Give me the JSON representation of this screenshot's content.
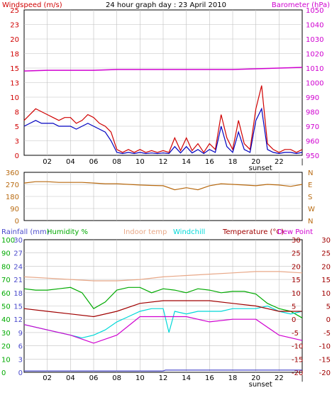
{
  "colors": {
    "windspeed": "#d00000",
    "windspeed_avg": "#0000c0",
    "barometer": "#d000d0",
    "wind_direction": "#b86a10",
    "rainfall": "#4a4acc",
    "humidity": "#00aa00",
    "indoor_temp": "#e8a888",
    "windchill": "#00d8d8",
    "temperature": "#a00000",
    "dew_point": "#d000d0",
    "grid": "#c0c0c0",
    "frame": "#000000"
  },
  "chart_data": [
    {
      "type": "line",
      "title": "24 hour graph day : 23 April 2010",
      "legend": [
        "Windspeed (m/s)",
        "Barometer (hPa)"
      ],
      "x_ticks": [
        "02",
        "04",
        "06",
        "08",
        "10",
        "12",
        "14",
        "16",
        "18",
        "20",
        "22",
        "|"
      ],
      "sunset_label": "sunset",
      "left_axis": {
        "label": "Windspeed (m/s)",
        "ticks": [
          "0",
          "3",
          "5",
          "8",
          "10",
          "13",
          "15",
          "18",
          "20",
          "23",
          "25"
        ],
        "range": [
          0,
          25
        ]
      },
      "right_axis": {
        "label": "Barometer (hPa)",
        "ticks": [
          "950",
          "960",
          "970",
          "980",
          "990",
          "1000",
          "1010",
          "1020",
          "1030",
          "1040",
          "1050"
        ],
        "range": [
          950,
          1050
        ]
      },
      "series": [
        {
          "name": "Windspeed (m/s)",
          "hours": [
            0,
            0.5,
            1,
            1.5,
            2,
            2.5,
            3,
            3.5,
            4,
            4.5,
            5,
            5.5,
            6,
            6.5,
            7,
            7.5,
            8,
            8.5,
            9,
            9.5,
            10,
            10.5,
            11,
            11.5,
            12,
            12.5,
            13,
            13.5,
            14,
            14.5,
            15,
            15.5,
            16,
            16.5,
            17,
            17.5,
            18,
            18.5,
            19,
            19.5,
            20,
            20.5,
            21,
            21.5,
            22,
            22.5,
            23,
            23.5,
            24
          ],
          "values": [
            6,
            7,
            8,
            7.5,
            7,
            6.5,
            6,
            6.5,
            6.5,
            5.5,
            6,
            7,
            6.5,
            5.5,
            5,
            4,
            1,
            0.5,
            1,
            0.5,
            1,
            0.5,
            0.8,
            0.5,
            0.8,
            0.5,
            3,
            0.8,
            3,
            0.8,
            2,
            0.5,
            2,
            1,
            7,
            3,
            1,
            6,
            2,
            1,
            8,
            12,
            2,
            1,
            0.5,
            1,
            1,
            0.5,
            1
          ]
        },
        {
          "name": "Average windspeed",
          "hours": [
            0,
            0.5,
            1,
            1.5,
            2,
            2.5,
            3,
            3.5,
            4,
            4.5,
            5,
            5.5,
            6,
            6.5,
            7,
            7.5,
            8,
            8.5,
            9,
            9.5,
            10,
            10.5,
            11,
            11.5,
            12,
            12.5,
            13,
            13.5,
            14,
            14.5,
            15,
            15.5,
            16,
            16.5,
            17,
            17.5,
            18,
            18.5,
            19,
            19.5,
            20,
            20.5,
            21,
            21.5,
            22,
            22.5,
            23,
            23.5,
            24
          ],
          "values": [
            5,
            5.5,
            6,
            5.5,
            5.5,
            5.5,
            5,
            5,
            5,
            4.5,
            5,
            5.5,
            5,
            4.5,
            4,
            2.5,
            0.5,
            0.3,
            0.5,
            0.3,
            0.5,
            0.3,
            0.4,
            0.3,
            0.4,
            0.3,
            1.5,
            0.4,
            1.5,
            0.4,
            1,
            0.3,
            1,
            0.5,
            5,
            1.5,
            0.5,
            4,
            1,
            0.5,
            6,
            8,
            1,
            0.5,
            0.3,
            0.5,
            0.5,
            0.3,
            0.5
          ]
        },
        {
          "name": "Barometer (hPa)",
          "axis": "right",
          "hours": [
            0,
            2,
            4,
            6,
            8,
            10,
            12,
            14,
            16,
            18,
            20,
            22,
            24
          ],
          "values": [
            1008,
            1008.5,
            1008.5,
            1008.5,
            1009,
            1009,
            1009,
            1009,
            1009,
            1009,
            1009.5,
            1010,
            1010.5
          ]
        }
      ]
    },
    {
      "type": "line",
      "title": "",
      "legend": [],
      "left_axis": {
        "label": "",
        "ticks": [
          "0",
          "90",
          "180",
          "270",
          "360"
        ],
        "range": [
          0,
          360
        ]
      },
      "right_axis": {
        "label": "",
        "ticks": [
          "N",
          "W",
          "S",
          "E",
          "N"
        ]
      },
      "series": [
        {
          "name": "Wind direction",
          "hours": [
            0,
            1,
            2,
            3,
            4,
            5,
            6,
            7,
            8,
            9,
            10,
            11,
            12,
            13,
            14,
            15,
            16,
            17,
            18,
            19,
            20,
            21,
            22,
            23,
            24
          ],
          "values": [
            280,
            290,
            290,
            285,
            285,
            285,
            280,
            275,
            275,
            270,
            265,
            262,
            260,
            230,
            245,
            230,
            260,
            275,
            270,
            265,
            260,
            270,
            265,
            255,
            270
          ]
        }
      ]
    },
    {
      "type": "line",
      "title": "",
      "legend": [
        "Rainfall (mm)",
        "Humidity %",
        "Indoor temp",
        "Windchill",
        "Temperature (°C)",
        "Dew Point"
      ],
      "x_ticks": [
        "02",
        "04",
        "06",
        "08",
        "10",
        "12",
        "14",
        "16",
        "18",
        "20",
        "22",
        "|"
      ],
      "sunset_label": "sunset",
      "rain_axis": {
        "ticks": [
          "0",
          "3",
          "6",
          "9",
          "12",
          "15",
          "18",
          "21",
          "24",
          "27",
          "30"
        ],
        "range": [
          0,
          30
        ]
      },
      "humidity_axis": {
        "ticks": [
          "0",
          "10",
          "20",
          "30",
          "40",
          "50",
          "60",
          "70",
          "80",
          "90",
          "100"
        ],
        "range": [
          0,
          100
        ]
      },
      "temp_axis": {
        "ticks": [
          "-20",
          "-15",
          "-10",
          "-5",
          "0",
          "5",
          "10",
          "15",
          "20",
          "25",
          "30"
        ],
        "range": [
          -20,
          30
        ]
      },
      "temp_axis_mirror": {
        "ticks": [
          "-20",
          "-15",
          "-10",
          "-5",
          "0",
          "5",
          "10",
          "15",
          "20",
          "25",
          "30"
        ],
        "range": [
          -20,
          30
        ]
      },
      "series": [
        {
          "name": "Rainfall (mm)",
          "axis": "rain",
          "hours": [
            0,
            12,
            12.2,
            24
          ],
          "values": [
            0.3,
            0.3,
            0.5,
            0.5
          ]
        },
        {
          "name": "Humidity %",
          "axis": "humidity",
          "hours": [
            0,
            1,
            2,
            3,
            4,
            5,
            6,
            7,
            8,
            9,
            10,
            11,
            12,
            13,
            14,
            15,
            16,
            17,
            18,
            19,
            20,
            21,
            22,
            23,
            24
          ],
          "values": [
            63,
            62,
            62,
            63,
            64,
            60,
            48,
            53,
            62,
            64,
            64,
            60,
            63,
            62,
            60,
            63,
            62,
            60,
            61,
            61,
            59,
            52,
            48,
            46,
            41
          ]
        },
        {
          "name": "Indoor temp",
          "axis": "temp",
          "hours": [
            0,
            2,
            4,
            6,
            8,
            10,
            12,
            14,
            16,
            18,
            20,
            22,
            24
          ],
          "values": [
            16,
            15.5,
            15,
            14.5,
            14.5,
            15,
            16,
            16.5,
            17,
            17.5,
            18,
            18,
            17.5
          ]
        },
        {
          "name": "Windchill",
          "axis": "temp",
          "hours": [
            0,
            1,
            2,
            3,
            4,
            5,
            6,
            7,
            8,
            9,
            10,
            11,
            12,
            12.5,
            13,
            14,
            15,
            16,
            17,
            18,
            19,
            20,
            21,
            22,
            23,
            24
          ],
          "values": [
            -2,
            -3,
            -4,
            -5,
            -6,
            -7,
            -6,
            -4,
            -1,
            1,
            3,
            4,
            4,
            -5,
            3,
            2,
            3,
            3,
            3,
            4,
            4,
            4,
            5,
            3,
            2,
            3
          ]
        },
        {
          "name": "Temperature (°C)",
          "axis": "temp",
          "hours": [
            0,
            2,
            4,
            6,
            8,
            10,
            12,
            14,
            16,
            18,
            20,
            22,
            24
          ],
          "values": [
            4,
            3,
            2,
            1,
            3,
            6,
            7,
            7,
            7,
            6,
            5,
            3,
            3
          ]
        },
        {
          "name": "Dew Point",
          "axis": "temp",
          "hours": [
            0,
            2,
            4,
            6,
            8,
            10,
            12,
            14,
            16,
            18,
            20,
            22,
            24
          ],
          "values": [
            -2,
            -4,
            -6,
            -9,
            -6,
            1,
            1,
            1,
            -1,
            0,
            0,
            -6,
            -8
          ]
        }
      ]
    }
  ]
}
